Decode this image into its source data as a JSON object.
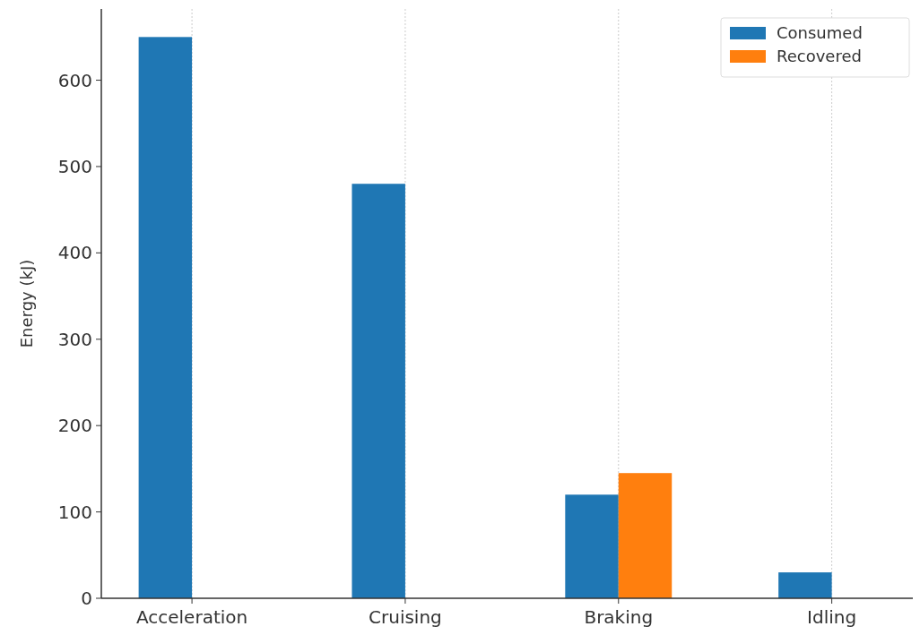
{
  "chart_data": {
    "type": "bar",
    "ylabel": "Energy (kJ)",
    "categories": [
      "Acceleration",
      "Cruising",
      "Braking",
      "Idling"
    ],
    "series": [
      {
        "name": "Consumed",
        "color": "#1f77b4",
        "values": [
          650,
          480,
          120,
          30
        ]
      },
      {
        "name": "Recovered",
        "color": "#ff7f0e",
        "values": [
          0,
          0,
          145,
          0
        ]
      }
    ],
    "ylim": [
      0,
      682.5
    ],
    "yticks": [
      0,
      100,
      200,
      300,
      400,
      500,
      600
    ],
    "grid": "x",
    "legend": "top right"
  }
}
